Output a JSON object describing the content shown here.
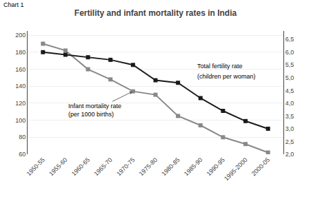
{
  "chart_data": {
    "type": "line",
    "title": "Fertility and infant mortality rates in India",
    "categories": [
      "1950-55",
      "1955-60",
      "1960-65",
      "1965-70",
      "1970-75",
      "1975-80",
      "1980-85",
      "1985-90",
      "1990-95",
      "1995-2000",
      "2000-05"
    ],
    "series": [
      {
        "color": "#888888",
        "marker": "square",
        "values": [
          190,
          182,
          160,
          148,
          134,
          130,
          105,
          94,
          80,
          72,
          62
        ]
      },
      {
        "color": "#1a1a1a",
        "marker": "square",
        "axis": "y2",
        "values": [
          6.0,
          5.9,
          5.8,
          5.7,
          5.5,
          4.9,
          4.8,
          4.2,
          3.7,
          3.3,
          3.0
        ]
      }
    ],
    "ylim": [
      60,
      205
    ],
    "yticks": [
      60,
      80,
      100,
      120,
      140,
      160,
      180,
      200
    ],
    "y2lim": [
      2.0,
      6.83
    ],
    "y2ticks": [
      {
        "value": 2.0,
        "label": "2,0"
      },
      {
        "value": 2.5,
        "label": "2,5"
      },
      {
        "value": 3.0,
        "label": "3,0"
      },
      {
        "value": 3.5,
        "label": "3,5"
      },
      {
        "value": 4.0,
        "label": "4,0"
      },
      {
        "value": 4.5,
        "label": "4,5"
      },
      {
        "value": 5.0,
        "label": "5,0"
      },
      {
        "value": 5.5,
        "label": "5,5"
      },
      {
        "value": 6.0,
        "label": "6,0"
      },
      {
        "value": 6.5,
        "label": "6,5"
      }
    ],
    "grid": true,
    "annotations": [
      {
        "text": "Chart 1"
      },
      {
        "text": "Infant mortality rate\n(per 1000 births)",
        "x": "1970-75",
        "y": 134
      },
      {
        "text": "Total fertility rate"
      },
      {
        "text": "(children per woman)"
      }
    ]
  }
}
